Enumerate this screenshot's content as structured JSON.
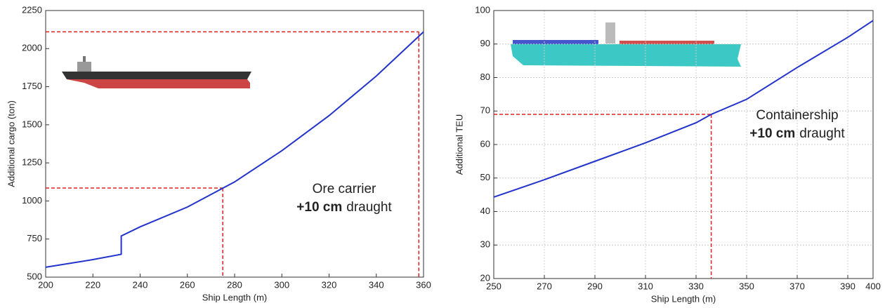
{
  "chart_data": [
    {
      "type": "line",
      "xlabel": "Ship Length (m)",
      "ylabel": "Additional cargo (ton)",
      "annotation": {
        "name": "Ore carrier",
        "bold": "+10 cm",
        "rest": "draught"
      },
      "x": [
        200,
        220,
        232,
        232,
        240,
        260,
        280,
        300,
        320,
        340,
        360
      ],
      "series": [
        {
          "color": "#2233cc",
          "values": [
            565,
            615,
            650,
            770,
            830,
            960,
            1125,
            1330,
            1560,
            1820,
            2110
          ]
        }
      ],
      "reference_lines": [
        {
          "x": 358,
          "y": 2110,
          "color": "#e02020"
        },
        {
          "x": 275,
          "y": 1085,
          "color": "#e02020"
        }
      ],
      "xlim": [
        200,
        360
      ],
      "xticks": [
        200,
        220,
        240,
        260,
        280,
        300,
        320,
        340,
        360
      ],
      "ylim": [
        500,
        2250
      ],
      "yticks": [
        500,
        750,
        1000,
        1250,
        1500,
        1750,
        2000,
        2250
      ],
      "grid": false
    },
    {
      "type": "line",
      "xlabel": "Ship Length (m)",
      "ylabel": "Additional  TEU",
      "annotation": {
        "name": "Containership",
        "bold": "+10 cm",
        "rest": "draught"
      },
      "x": [
        250,
        270,
        290,
        310,
        330,
        336,
        350,
        370,
        390,
        400
      ],
      "series": [
        {
          "color": "#2233cc",
          "values": [
            44.3,
            49.5,
            55,
            60.5,
            66.5,
            69,
            73.5,
            83,
            92,
            97
          ]
        }
      ],
      "reference_lines": [
        {
          "x": 336,
          "y": 69,
          "color": "#e02020"
        }
      ],
      "xlim": [
        250,
        400
      ],
      "xticks": [
        250,
        270,
        290,
        310,
        330,
        350,
        370,
        390,
        400
      ],
      "ylim": [
        20,
        100
      ],
      "yticks": [
        20,
        30,
        40,
        50,
        60,
        70,
        80,
        90,
        100
      ],
      "grid": true
    }
  ]
}
